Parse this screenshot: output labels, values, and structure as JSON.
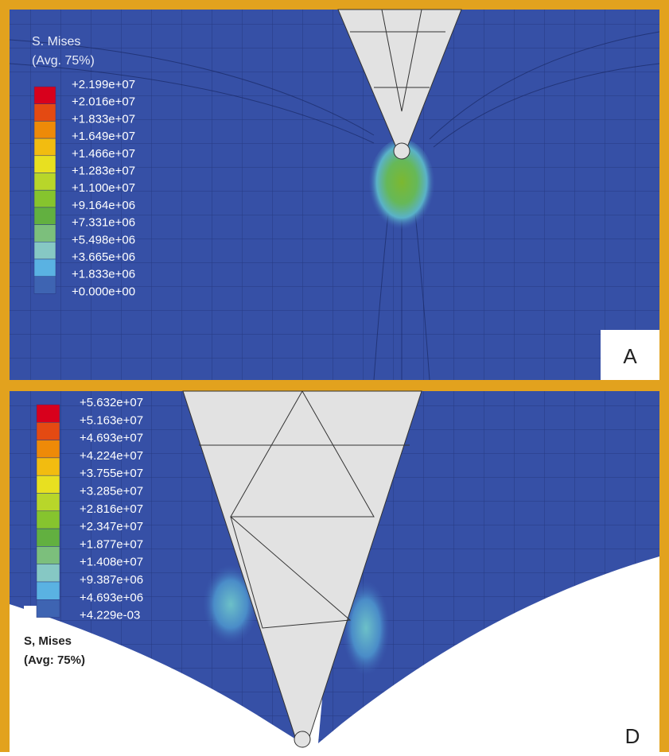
{
  "panels": [
    {
      "letter": "A",
      "legend": {
        "title": "S. Mises",
        "subtitle": "(Avg. 75%)",
        "labels": [
          "+2.199e+07",
          "+2.016e+07",
          "+1.833e+07",
          "+1.649e+07",
          "+1.466e+07",
          "+1.283e+07",
          "+1.100e+07",
          "+9.164e+06",
          "+7.331e+06",
          "+5.498e+06",
          "+3.665e+06",
          "+1.833e+06",
          "+0.000e+00"
        ]
      }
    },
    {
      "letter": "D",
      "legend": {
        "title": "S, Mises",
        "subtitle": "(Avg: 75%)",
        "labels": [
          "+5.632e+07",
          "+5.163e+07",
          "+4.693e+07",
          "+4.224e+07",
          "+3.755e+07",
          "+3.285e+07",
          "+2.816e+07",
          "+2.347e+07",
          "+1.877e+07",
          "+1.408e+07",
          "+9.387e+06",
          "+4.693e+06",
          "+4.229e-03"
        ]
      }
    }
  ],
  "colormap": [
    "#d8001c",
    "#e44a12",
    "#ee8a08",
    "#f2bc10",
    "#e8e020",
    "#b8d62a",
    "#86c42e",
    "#62b040",
    "#7cbf7c",
    "#86c8c4",
    "#5ab2e2",
    "#3e64b2"
  ]
}
